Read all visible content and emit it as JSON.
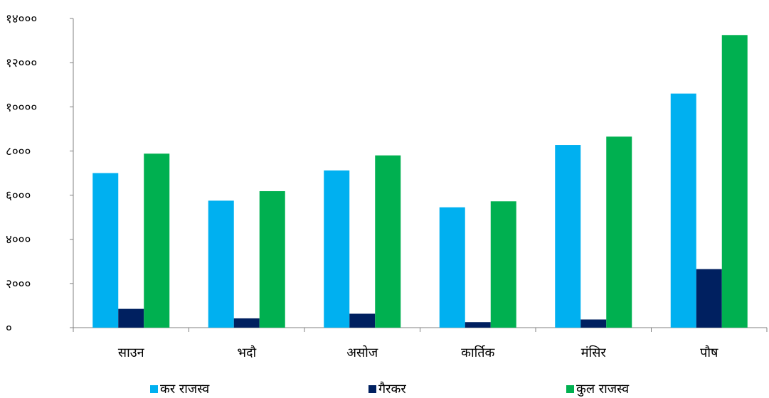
{
  "chart_data": {
    "type": "bar",
    "categories": [
      "साउन",
      "भदौ",
      "असोज",
      "कार्तिक",
      "मंसिर",
      "पौष"
    ],
    "series": [
      {
        "name": "कर राजस्व",
        "values": [
          7000,
          5750,
          7120,
          5450,
          8270,
          10600
        ],
        "color": "#00b0f0"
      },
      {
        "name": "गैरकर",
        "values": [
          850,
          420,
          630,
          250,
          370,
          2650
        ],
        "color": "#002060"
      },
      {
        "name": "कुल राजस्व",
        "values": [
          7880,
          6180,
          7800,
          5720,
          8650,
          13250
        ],
        "color": "#00b050"
      }
    ],
    "yticks": [
      "०",
      "२०००",
      "४०००",
      "६०००",
      "८०००",
      "१००००",
      "१२०००",
      "१४०००"
    ],
    "ylim": [
      0,
      14000
    ],
    "title": "",
    "xlabel": "",
    "ylabel": "",
    "legend_position": "bottom",
    "grid": false
  }
}
